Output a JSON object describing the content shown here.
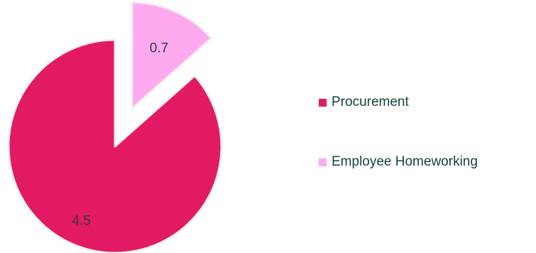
{
  "chart_data": {
    "type": "pie",
    "slices": [
      {
        "label": "Procurement",
        "value": 4.5,
        "color": "#e21a64",
        "exploded": false
      },
      {
        "label": "Employee Homeworking",
        "value": 0.7,
        "color": "#ffaaf0",
        "exploded": true
      }
    ],
    "data_labels": [
      "4.5",
      "0.7"
    ],
    "legend_position": "right",
    "slice_border_color": "#f2f2f2"
  }
}
